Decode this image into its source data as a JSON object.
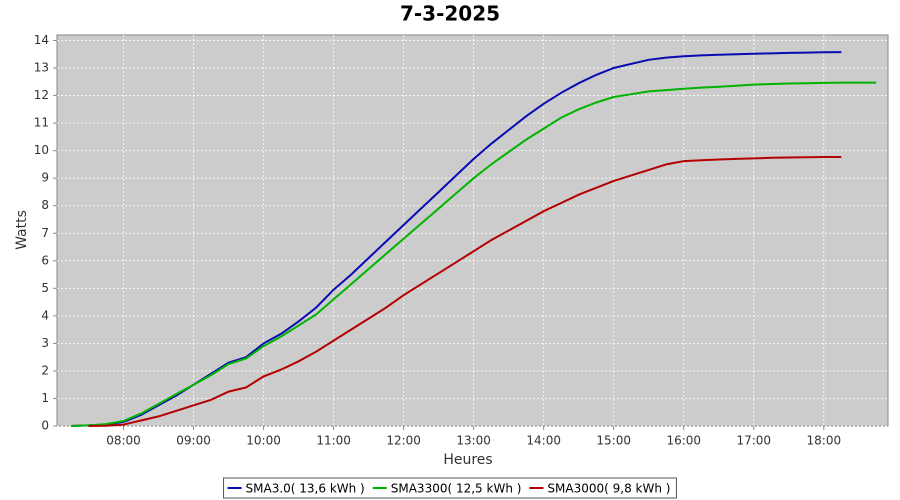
{
  "chart_data": {
    "type": "line",
    "title": "7-3-2025",
    "x_label": "Heures",
    "y_label": "Watts",
    "x": [
      "07:15",
      "07:30",
      "07:45",
      "08:00",
      "08:15",
      "08:30",
      "08:45",
      "09:00",
      "09:15",
      "09:30",
      "09:45",
      "10:00",
      "10:15",
      "10:30",
      "10:45",
      "11:00",
      "11:15",
      "11:30",
      "11:45",
      "12:00",
      "12:15",
      "12:30",
      "12:45",
      "13:00",
      "13:15",
      "13:30",
      "13:45",
      "14:00",
      "14:15",
      "14:30",
      "14:45",
      "15:00",
      "15:15",
      "15:30",
      "15:45",
      "16:00",
      "16:15",
      "16:30",
      "16:45",
      "17:00",
      "17:15",
      "17:30",
      "17:45",
      "18:00",
      "18:15",
      "18:30",
      "18:45"
    ],
    "series": [
      {
        "name": "SMA3.0( 13,6 kWh )",
        "color": "#0a0ab4",
        "values": [
          0,
          0.02,
          0.05,
          0.15,
          0.4,
          0.75,
          1.1,
          1.5,
          1.9,
          2.3,
          2.5,
          3.0,
          3.35,
          3.8,
          4.3,
          4.95,
          5.5,
          6.1,
          6.7,
          7.3,
          7.9,
          8.5,
          9.1,
          9.7,
          10.25,
          10.75,
          11.25,
          11.7,
          12.1,
          12.45,
          12.75,
          13.0,
          13.15,
          13.3,
          13.38,
          13.43,
          13.46,
          13.48,
          13.5,
          13.52,
          13.53,
          13.55,
          13.56,
          13.57,
          13.58,
          null,
          null
        ]
      },
      {
        "name": "SMA3300( 12,5 kWh )",
        "color": "#00b400",
        "values": [
          0,
          0.02,
          0.07,
          0.18,
          0.45,
          0.8,
          1.15,
          1.5,
          1.85,
          2.25,
          2.45,
          2.9,
          3.25,
          3.65,
          4.05,
          4.6,
          5.15,
          5.7,
          6.25,
          6.8,
          7.35,
          7.9,
          8.45,
          9.0,
          9.5,
          9.95,
          10.4,
          10.8,
          11.2,
          11.5,
          11.75,
          11.95,
          12.05,
          12.15,
          12.2,
          12.25,
          12.29,
          12.32,
          12.36,
          12.4,
          12.42,
          12.44,
          12.45,
          12.46,
          12.47,
          12.47,
          12.47
        ]
      },
      {
        "name": "SMA3000( 9,8 kWh )",
        "color": "#b40000",
        "values": [
          null,
          0,
          0.01,
          0.05,
          0.2,
          0.35,
          0.55,
          0.75,
          0.95,
          1.25,
          1.4,
          1.8,
          2.05,
          2.35,
          2.7,
          3.1,
          3.5,
          3.9,
          4.3,
          4.75,
          5.15,
          5.55,
          5.95,
          6.35,
          6.75,
          7.1,
          7.45,
          7.8,
          8.1,
          8.4,
          8.65,
          8.9,
          9.1,
          9.3,
          9.5,
          9.62,
          9.65,
          9.68,
          9.7,
          9.72,
          9.74,
          9.75,
          9.76,
          9.77,
          9.77,
          null,
          null
        ]
      }
    ],
    "xlim": [
      "07:03",
      "18:55"
    ],
    "xticks": [
      "08:00",
      "09:00",
      "10:00",
      "11:00",
      "12:00",
      "13:00",
      "14:00",
      "15:00",
      "16:00",
      "17:00",
      "18:00"
    ],
    "ylim": [
      0,
      14.2
    ],
    "yticks": [
      0,
      1,
      2,
      3,
      4,
      5,
      6,
      7,
      8,
      9,
      10,
      11,
      12,
      13,
      14
    ],
    "grid": true,
    "legend": "bottom"
  }
}
